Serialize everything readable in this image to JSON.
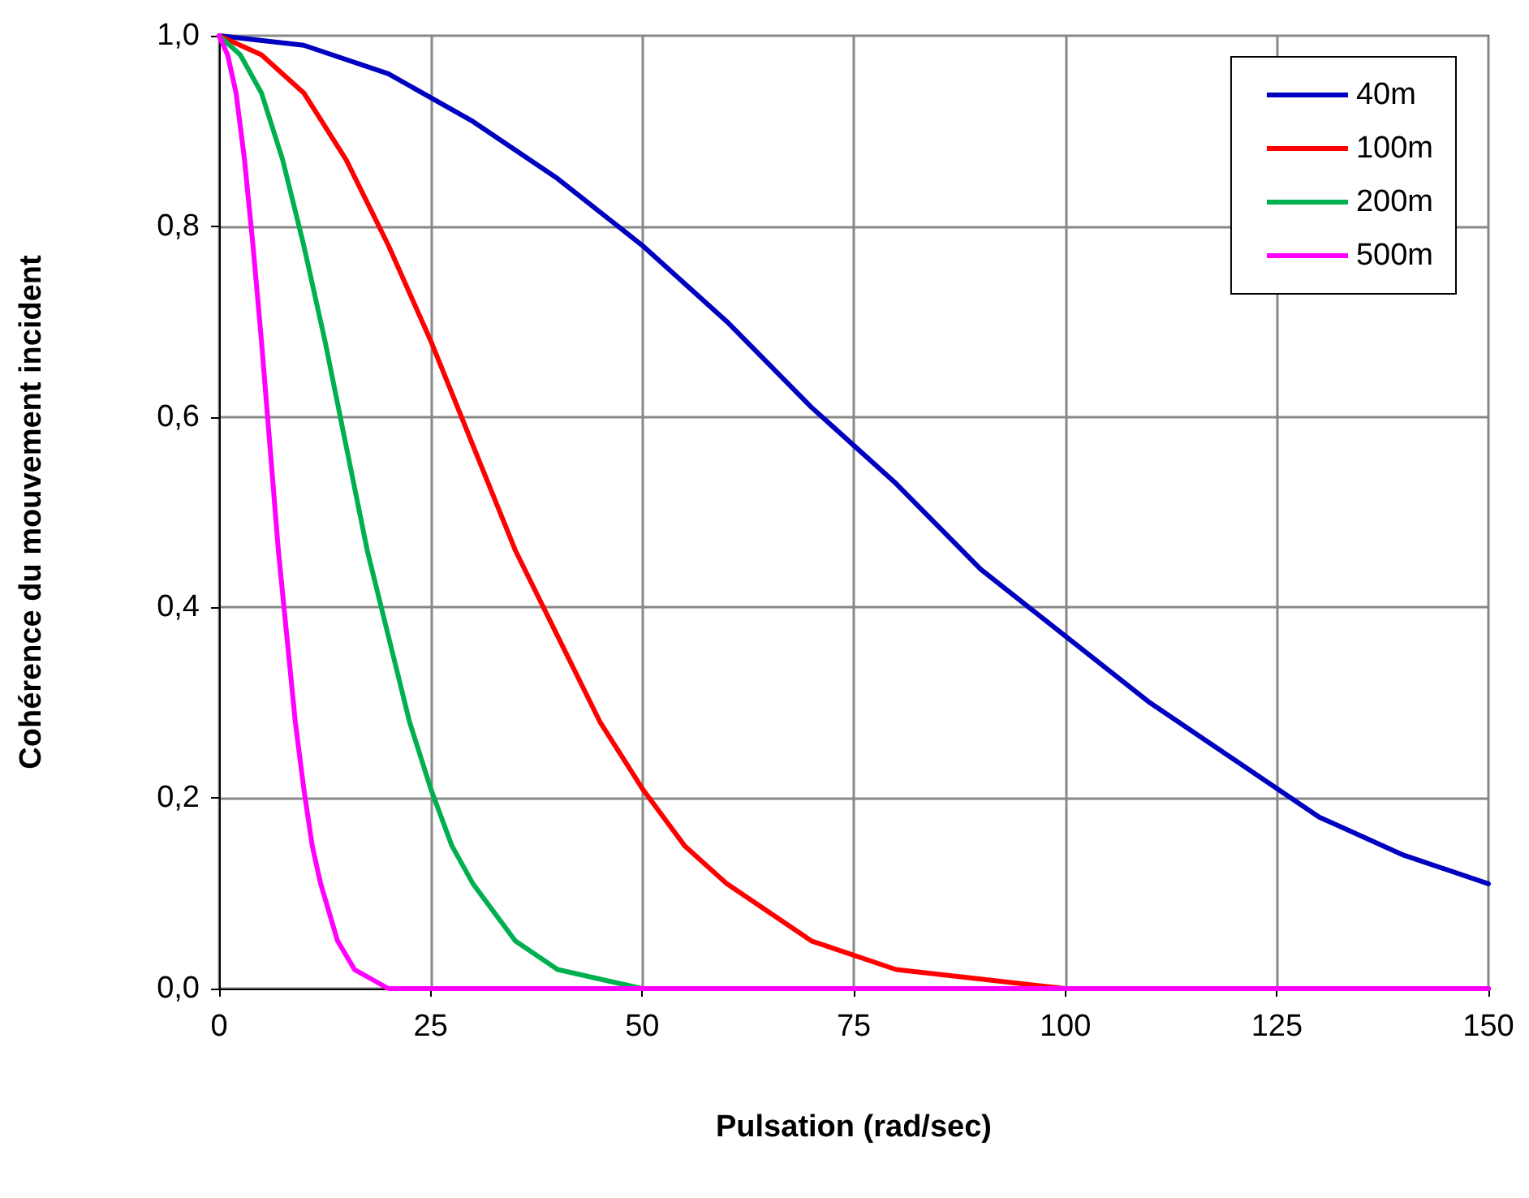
{
  "chart_data": {
    "type": "line",
    "xlabel": "Pulsation (rad/sec)",
    "ylabel": "Cohérence du mouvement incident",
    "series": [
      {
        "name": "40m",
        "color": "#0000c0",
        "x": [
          0,
          10,
          20,
          30,
          40,
          50,
          60,
          70,
          80,
          90,
          100,
          110,
          120,
          130,
          140,
          150
        ],
        "values": [
          1,
          0.99,
          0.96,
          0.91,
          0.85,
          0.78,
          0.7,
          0.61,
          0.53,
          0.44,
          0.37,
          0.3,
          0.24,
          0.18,
          0.14,
          0.11
        ]
      },
      {
        "name": "100m",
        "color": "#ff0000",
        "x": [
          0,
          5,
          10,
          15,
          20,
          25,
          30,
          35,
          40,
          45,
          50,
          55,
          60,
          70,
          80,
          90,
          100,
          150
        ],
        "values": [
          1,
          0.98,
          0.94,
          0.87,
          0.78,
          0.68,
          0.57,
          0.46,
          0.37,
          0.28,
          0.21,
          0.15,
          0.11,
          0.05,
          0.02,
          0.01,
          0,
          0
        ]
      },
      {
        "name": "200m",
        "color": "#00b050",
        "x": [
          0,
          2.5,
          5,
          7.5,
          10,
          12.5,
          15,
          17.5,
          20,
          22.5,
          25,
          27.5,
          30,
          35,
          40,
          45,
          50,
          150
        ],
        "values": [
          1,
          0.98,
          0.94,
          0.87,
          0.78,
          0.68,
          0.57,
          0.46,
          0.37,
          0.28,
          0.21,
          0.15,
          0.11,
          0.05,
          0.02,
          0.01,
          0,
          0
        ]
      },
      {
        "name": "500m",
        "color": "#ff00ff",
        "x": [
          0,
          1,
          2,
          3,
          4,
          5,
          6,
          7,
          8,
          9,
          10,
          11,
          12,
          14,
          16,
          18,
          20,
          150
        ],
        "values": [
          1,
          0.98,
          0.94,
          0.87,
          0.78,
          0.68,
          0.57,
          0.46,
          0.37,
          0.28,
          0.21,
          0.15,
          0.11,
          0.05,
          0.02,
          0.01,
          0,
          0
        ]
      }
    ],
    "xlim": [
      0,
      150
    ],
    "xticks": [
      0,
      25,
      50,
      75,
      100,
      125,
      150
    ],
    "ylim": [
      0,
      1
    ],
    "yticks": [
      {
        "value": 0,
        "label": "0,0"
      },
      {
        "value": 0.2,
        "label": "0,2"
      },
      {
        "value": 0.4,
        "label": "0,4"
      },
      {
        "value": 0.6,
        "label": "0,6"
      },
      {
        "value": 0.8,
        "label": "0,8"
      },
      {
        "value": 1,
        "label": "1,0"
      }
    ],
    "grid": true,
    "legend": "top right",
    "marker": "none",
    "line_style": "solid"
  }
}
